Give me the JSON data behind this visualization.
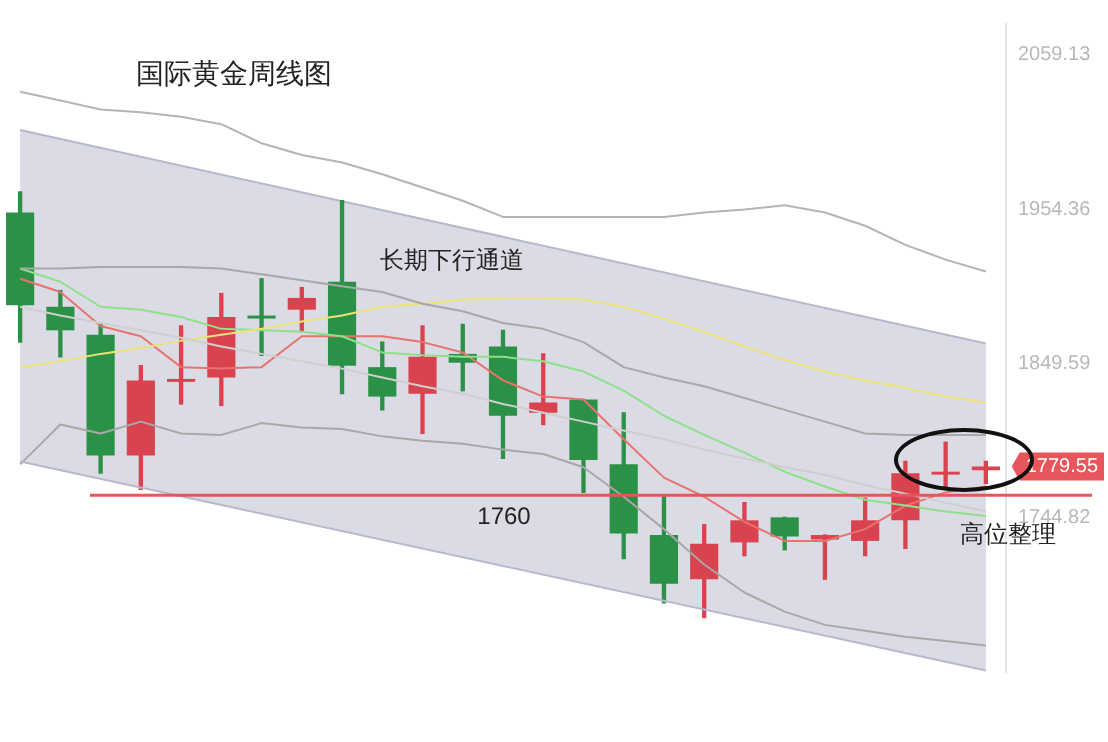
{
  "chart_data": {
    "type": "candlestick",
    "title": "国际黄金周线图",
    "categories": [
      null,
      null,
      null,
      null,
      null,
      null,
      null,
      null,
      null,
      null,
      null,
      null,
      null,
      null,
      null,
      null,
      null,
      null,
      null,
      null,
      null,
      null,
      null,
      null,
      null
    ],
    "ohlc": [
      [
        1952,
        1966,
        1864,
        1889
      ],
      [
        1888,
        1899,
        1854,
        1872
      ],
      [
        1869,
        1876,
        1775,
        1787
      ],
      [
        1787,
        1848,
        1764,
        1838
      ],
      [
        1837,
        1875,
        1822,
        1839
      ],
      [
        1840,
        1897,
        1821,
        1881
      ],
      [
        1882,
        1907,
        1855,
        1880
      ],
      [
        1886,
        1901,
        1871,
        1894
      ],
      [
        1905,
        1960,
        1829,
        1848
      ],
      [
        1847,
        1864,
        1818,
        1827
      ],
      [
        1829,
        1875,
        1802,
        1854
      ],
      [
        1856,
        1876,
        1831,
        1850
      ],
      [
        1861,
        1872,
        1785,
        1814
      ],
      [
        1816,
        1856,
        1808,
        1823
      ],
      [
        1825,
        1825,
        1762,
        1784
      ],
      [
        1781,
        1816,
        1717,
        1734
      ],
      [
        1733,
        1759,
        1687,
        1700
      ],
      [
        1703,
        1740,
        1677,
        1727
      ],
      [
        1728,
        1755,
        1719,
        1743
      ],
      [
        1745,
        1745,
        1723,
        1732
      ],
      [
        1730,
        1733,
        1703,
        1733
      ],
      [
        1729,
        1758,
        1719,
        1743
      ],
      [
        1743,
        1783,
        1724,
        1775
      ],
      [
        1774,
        1796,
        1764,
        1776
      ],
      [
        1777,
        1783,
        1768,
        1779.55
      ]
    ],
    "colors": [
      "#2a9147",
      "#2a9147",
      "#2a9147",
      "#d9434f",
      "#d9434f",
      "#d9434f",
      "#2a9147",
      "#d9434f",
      "#2a9147",
      "#2a9147",
      "#d9434f",
      "#2a9147",
      "#2a9147",
      "#d9434f",
      "#2a9147",
      "#2a9147",
      "#2a9147",
      "#d9434f",
      "#d9434f",
      "#2a9147",
      "#d9434f",
      "#d9434f",
      "#d9434f",
      "#d9434f",
      "#d9434f"
    ],
    "series": [
      {
        "type": "line",
        "color": "#b8b8cc",
        "values": [
          2008,
          null,
          null,
          null,
          null,
          null,
          null,
          null,
          null,
          null,
          null,
          null,
          null,
          null,
          null,
          null,
          null,
          null,
          null,
          null,
          null,
          null,
          null,
          null,
          1863
        ],
        "lower": [
          1783,
          null,
          null,
          null,
          null,
          null,
          null,
          null,
          null,
          null,
          null,
          null,
          null,
          null,
          null,
          null,
          null,
          null,
          null,
          null,
          null,
          null,
          null,
          null,
          1641
        ],
        "upper": [
          2008,
          null,
          null,
          null,
          null,
          null,
          null,
          null,
          null,
          null,
          null,
          null,
          null,
          null,
          null,
          null,
          null,
          null,
          null,
          null,
          null,
          null,
          null,
          null,
          1863
        ]
      },
      {
        "type": "line",
        "color": "#b8b8cc",
        "values": [
          1783,
          null,
          null,
          null,
          null,
          null,
          null,
          null,
          null,
          null,
          null,
          null,
          null,
          null,
          null,
          null,
          null,
          null,
          null,
          null,
          null,
          null,
          null,
          null,
          1641
        ]
      },
      {
        "type": "line",
        "color": "#b4b4b4",
        "values": [
          2034,
          2028,
          2022,
          2020,
          2017,
          2012,
          1999,
          1991,
          1986,
          1978,
          1969,
          1960,
          1949,
          1949,
          1949,
          1949,
          1949,
          1952,
          1954,
          1957,
          1952,
          1943,
          1930,
          1920,
          1912
        ]
      },
      {
        "type": "line",
        "color": "#a8a8a8",
        "values": [
          1914,
          1914,
          1915,
          1915,
          1915,
          1914,
          1910,
          1906,
          1902,
          1898,
          1890,
          1885,
          1877,
          1873,
          1864,
          1847,
          1840,
          1834,
          1826,
          1818,
          1810,
          1802,
          1801,
          1801,
          1801
        ]
      },
      {
        "type": "line",
        "color": "#cfcfcf",
        "values": [
          1888,
          1882,
          1877,
          1872,
          1867,
          1861,
          1856,
          1851,
          1846,
          1840,
          1834,
          1829,
          1822,
          1816,
          1810,
          1804,
          1798,
          1791,
          1785,
          1779,
          1774,
          1767,
          1761,
          1755,
          1749
        ]
      },
      {
        "type": "line",
        "color": "#a8a8a8",
        "values": [
          1781,
          1808,
          1802,
          1810,
          1802,
          1801,
          1809,
          1806,
          1805,
          1800,
          1797,
          1795,
          1791,
          1788,
          1779,
          1759,
          1737,
          1713,
          1694,
          1681,
          1672,
          1668,
          1664,
          1661,
          1658
        ]
      },
      {
        "type": "line",
        "color": "#ece27a",
        "values": [
          1847,
          1851,
          1856,
          1860,
          1865,
          1869,
          1873,
          1878,
          1882,
          1888,
          1890,
          1893,
          1894,
          1894,
          1893,
          1888,
          1880,
          1871,
          1861,
          1852,
          1844,
          1838,
          1833,
          1827,
          1823
        ]
      },
      {
        "type": "line",
        "color": "#8fe08a",
        "values": [
          1914,
          1905,
          1888,
          1886,
          1881,
          1873,
          1872,
          1871,
          1868,
          1857,
          1855,
          1854,
          1854,
          1851,
          1844,
          1831,
          1814,
          1801,
          1789,
          1776,
          1766,
          1757,
          1753,
          1749,
          1746
        ]
      },
      {
        "type": "line",
        "color": "#e8736e",
        "values": [
          1907,
          1898,
          1875,
          1868,
          1847,
          1846,
          1847,
          1868,
          1868,
          1868,
          1864,
          1857,
          1838,
          1827,
          1825,
          1798,
          1772,
          1759,
          1742,
          1729,
          1729,
          1737,
          1753,
          1762,
          1766
        ]
      }
    ],
    "ylim": [
      1640,
      2080
    ],
    "yticks": [
      1744.82,
      1849.59,
      1954.36,
      2059.13
    ],
    "ref_lines": [
      {
        "axis": "y",
        "value": 1760,
        "label": "1760",
        "color": "#e8555a"
      }
    ],
    "annotations": [
      "长期下行通道",
      "高位整理",
      "1779.55"
    ],
    "legend": false,
    "grid": false,
    "tick_labels": "y",
    "marker": "none",
    "line_style": "solid"
  }
}
